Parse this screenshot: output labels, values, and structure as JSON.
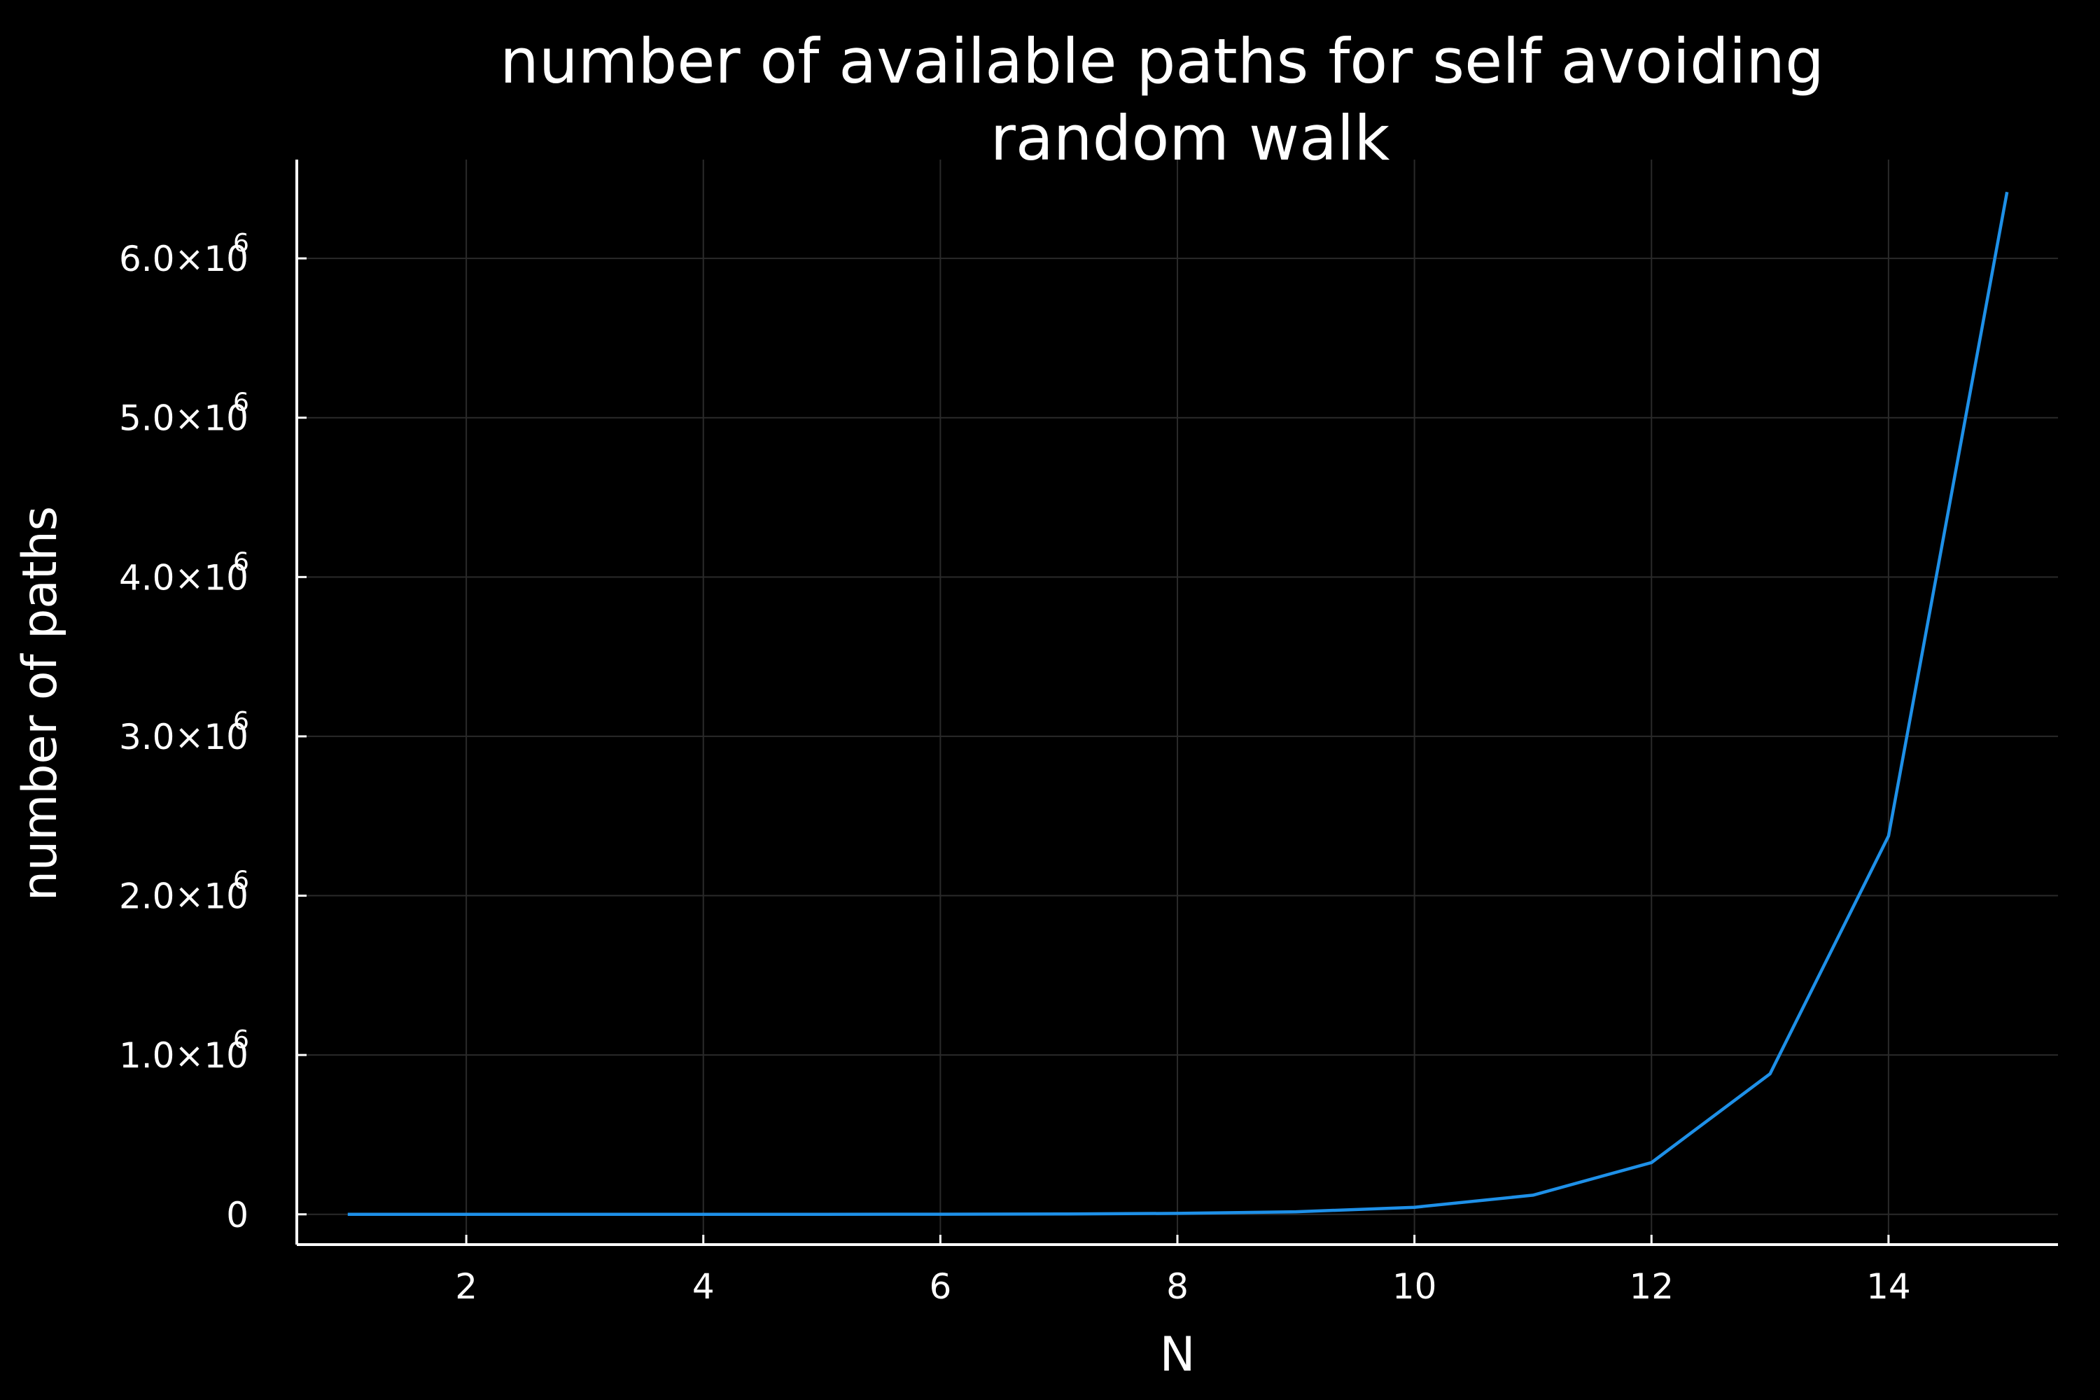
{
  "chart_data": {
    "type": "line",
    "title_lines": [
      "number of available paths for self avoiding",
      "random walk"
    ],
    "xlabel": "N",
    "ylabel": "number of paths",
    "xlim": [
      0.57,
      15.43
    ],
    "ylim": [
      -190000,
      6620000
    ],
    "x_ticks": [
      2,
      4,
      6,
      8,
      10,
      12,
      14
    ],
    "x_tick_labels": [
      "2",
      "4",
      "6",
      "8",
      "10",
      "12",
      "14"
    ],
    "y_ticks": [
      0,
      1000000,
      2000000,
      3000000,
      4000000,
      5000000,
      6000000
    ],
    "y_tick_labels": [
      {
        "mantissa": "0",
        "exponent": ""
      },
      {
        "mantissa": "1.0×10",
        "exponent": "6"
      },
      {
        "mantissa": "2.0×10",
        "exponent": "6"
      },
      {
        "mantissa": "3.0×10",
        "exponent": "6"
      },
      {
        "mantissa": "4.0×10",
        "exponent": "6"
      },
      {
        "mantissa": "5.0×10",
        "exponent": "6"
      },
      {
        "mantissa": "6.0×10",
        "exponent": "6"
      }
    ],
    "grid": true,
    "legend": "none",
    "series": [
      {
        "color": "#1e90e8",
        "x": [
          1,
          2,
          3,
          4,
          5,
          6,
          7,
          8,
          9,
          10,
          11,
          12,
          13,
          14,
          15
        ],
        "y": [
          4,
          12,
          36,
          100,
          284,
          780,
          2172,
          5916,
          16268,
          44100,
          120292,
          324932,
          881500,
          2374444,
          6416596
        ]
      }
    ],
    "colors": {
      "background": "#000000",
      "text": "#ffffff",
      "axis": "#ffffff",
      "grid": "#2a2a2a",
      "line": "#1e90e8"
    }
  }
}
